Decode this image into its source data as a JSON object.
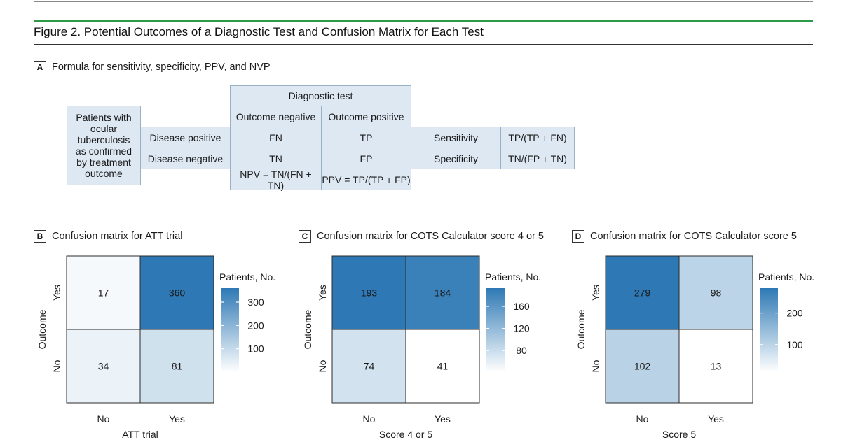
{
  "figure": {
    "title": "Figure 2. Potential Outcomes of a Diagnostic Test and Confusion Matrix for Each Test"
  },
  "panel_a": {
    "letter": "A",
    "title": "Formula for sensitivity, specificity, PPV, and NVP",
    "header": "Diagnostic test",
    "col_negative": "Outcome negative",
    "col_positive": "Outcome positive",
    "row_label": "Patients with ocular tuberculosis as confirmed by treatment outcome",
    "disease_positive": "Disease positive",
    "disease_negative": "Disease negative",
    "fn": "FN",
    "tp": "TP",
    "tn": "TN",
    "fp": "FP",
    "sensitivity_label": "Sensitivity",
    "sensitivity_formula": "TP/(TP + FN)",
    "specificity_label": "Specificity",
    "specificity_formula": "TN/(FP + TN)",
    "npv_formula": "NPV = TN/(FN + TN)",
    "ppv_formula": "PPV = TP/(TP + FP)"
  },
  "panels": {
    "b": {
      "letter": "B",
      "title": "Confusion matrix for ATT trial"
    },
    "c": {
      "letter": "C",
      "title": "Confusion matrix for COTS Calculator score 4 or 5"
    },
    "d": {
      "letter": "D",
      "title": "Confusion matrix for COTS Calculator score 5"
    }
  },
  "colors": {
    "scale_low": "#ffffff",
    "scale_high": "#2e79b5",
    "cell_blue": "#dde8f3",
    "cell_border": "#9ab0c4",
    "green_rule": "#2e9a48"
  },
  "chart_data": [
    {
      "type": "heatmap",
      "id": "b",
      "xlabel": "ATT trial",
      "ylabel": "Outcome",
      "x_categories": [
        "No",
        "Yes"
      ],
      "y_categories": [
        "Yes",
        "No"
      ],
      "values": [
        [
          17,
          360
        ],
        [
          34,
          81
        ]
      ],
      "legend_title": "Patients, No.",
      "legend_ticks": [
        300,
        200,
        100
      ],
      "color_range": [
        0,
        360
      ]
    },
    {
      "type": "heatmap",
      "id": "c",
      "xlabel": "Score 4 or 5",
      "ylabel": "Outcome",
      "x_categories": [
        "No",
        "Yes"
      ],
      "y_categories": [
        "Yes",
        "No"
      ],
      "values": [
        [
          193,
          184
        ],
        [
          74,
          41
        ]
      ],
      "legend_title": "Patients, No.",
      "legend_ticks": [
        160,
        120,
        80
      ],
      "color_range": [
        41,
        193
      ]
    },
    {
      "type": "heatmap",
      "id": "d",
      "xlabel": "Score 5",
      "ylabel": "Outcome",
      "x_categories": [
        "No",
        "Yes"
      ],
      "y_categories": [
        "Yes",
        "No"
      ],
      "values": [
        [
          279,
          98
        ],
        [
          102,
          13
        ]
      ],
      "legend_title": "Patients, No.",
      "legend_ticks": [
        200,
        100
      ],
      "color_range": [
        13,
        279
      ]
    }
  ]
}
